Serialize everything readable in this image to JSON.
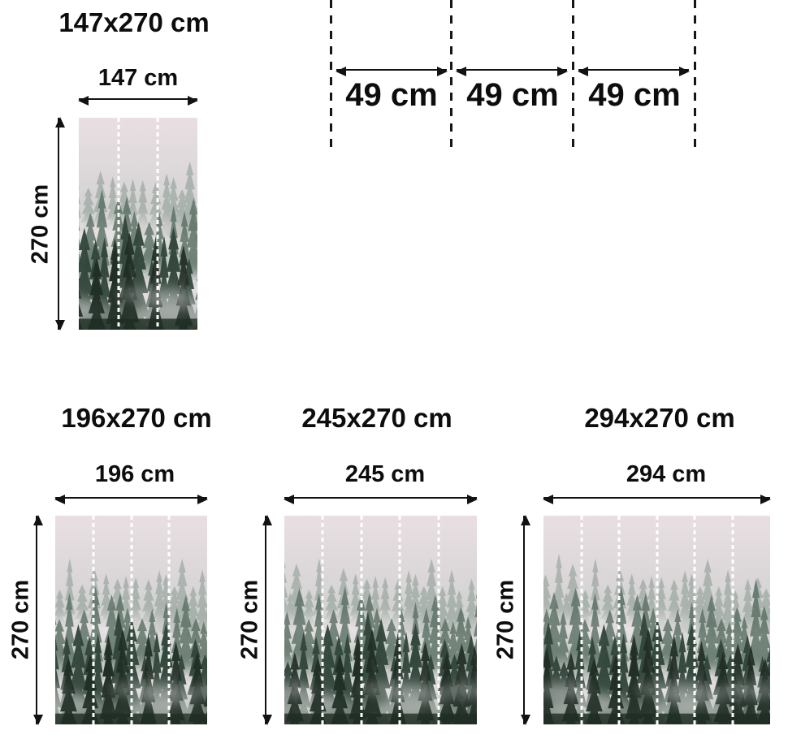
{
  "product_diagram": {
    "colors": {
      "text": "#0d0d0d",
      "arrow": "#121212",
      "panel_divider": "#161616",
      "panel_cut_line": "#ffffff",
      "forest_dark": "#2c3f35",
      "forest_mid": "#5a6f63",
      "sky_pink": "#e9dfe3"
    },
    "panel_width_section": {
      "segments": [
        {
          "label": "49 cm"
        },
        {
          "label": "49 cm"
        },
        {
          "label": "49 cm"
        }
      ]
    },
    "sizes": [
      {
        "title": "147x270 cm",
        "width_label": "147 cm",
        "height_label": "270 cm",
        "panels": 3
      },
      {
        "title": "196x270 cm",
        "width_label": "196 cm",
        "height_label": "270 cm",
        "panels": 4
      },
      {
        "title": "245x270 cm",
        "width_label": "245 cm",
        "height_label": "270 cm",
        "panels": 5
      },
      {
        "title": "294x270 cm",
        "width_label": "294 cm",
        "height_label": "270 cm",
        "panels": 6
      }
    ]
  }
}
